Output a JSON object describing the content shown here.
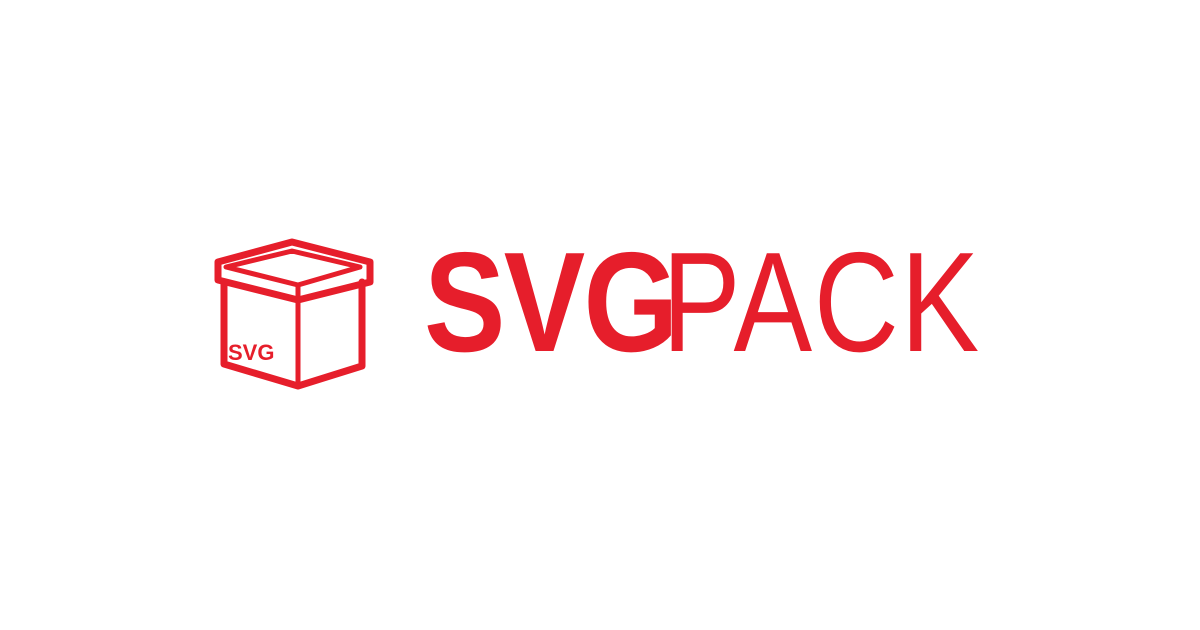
{
  "brand": {
    "name_bold": "SVG",
    "name_light": "PACK",
    "box_label": "SVG",
    "color": "#e61e2b",
    "background": "#ffffff"
  },
  "icons": {
    "logo": "box-icon"
  }
}
